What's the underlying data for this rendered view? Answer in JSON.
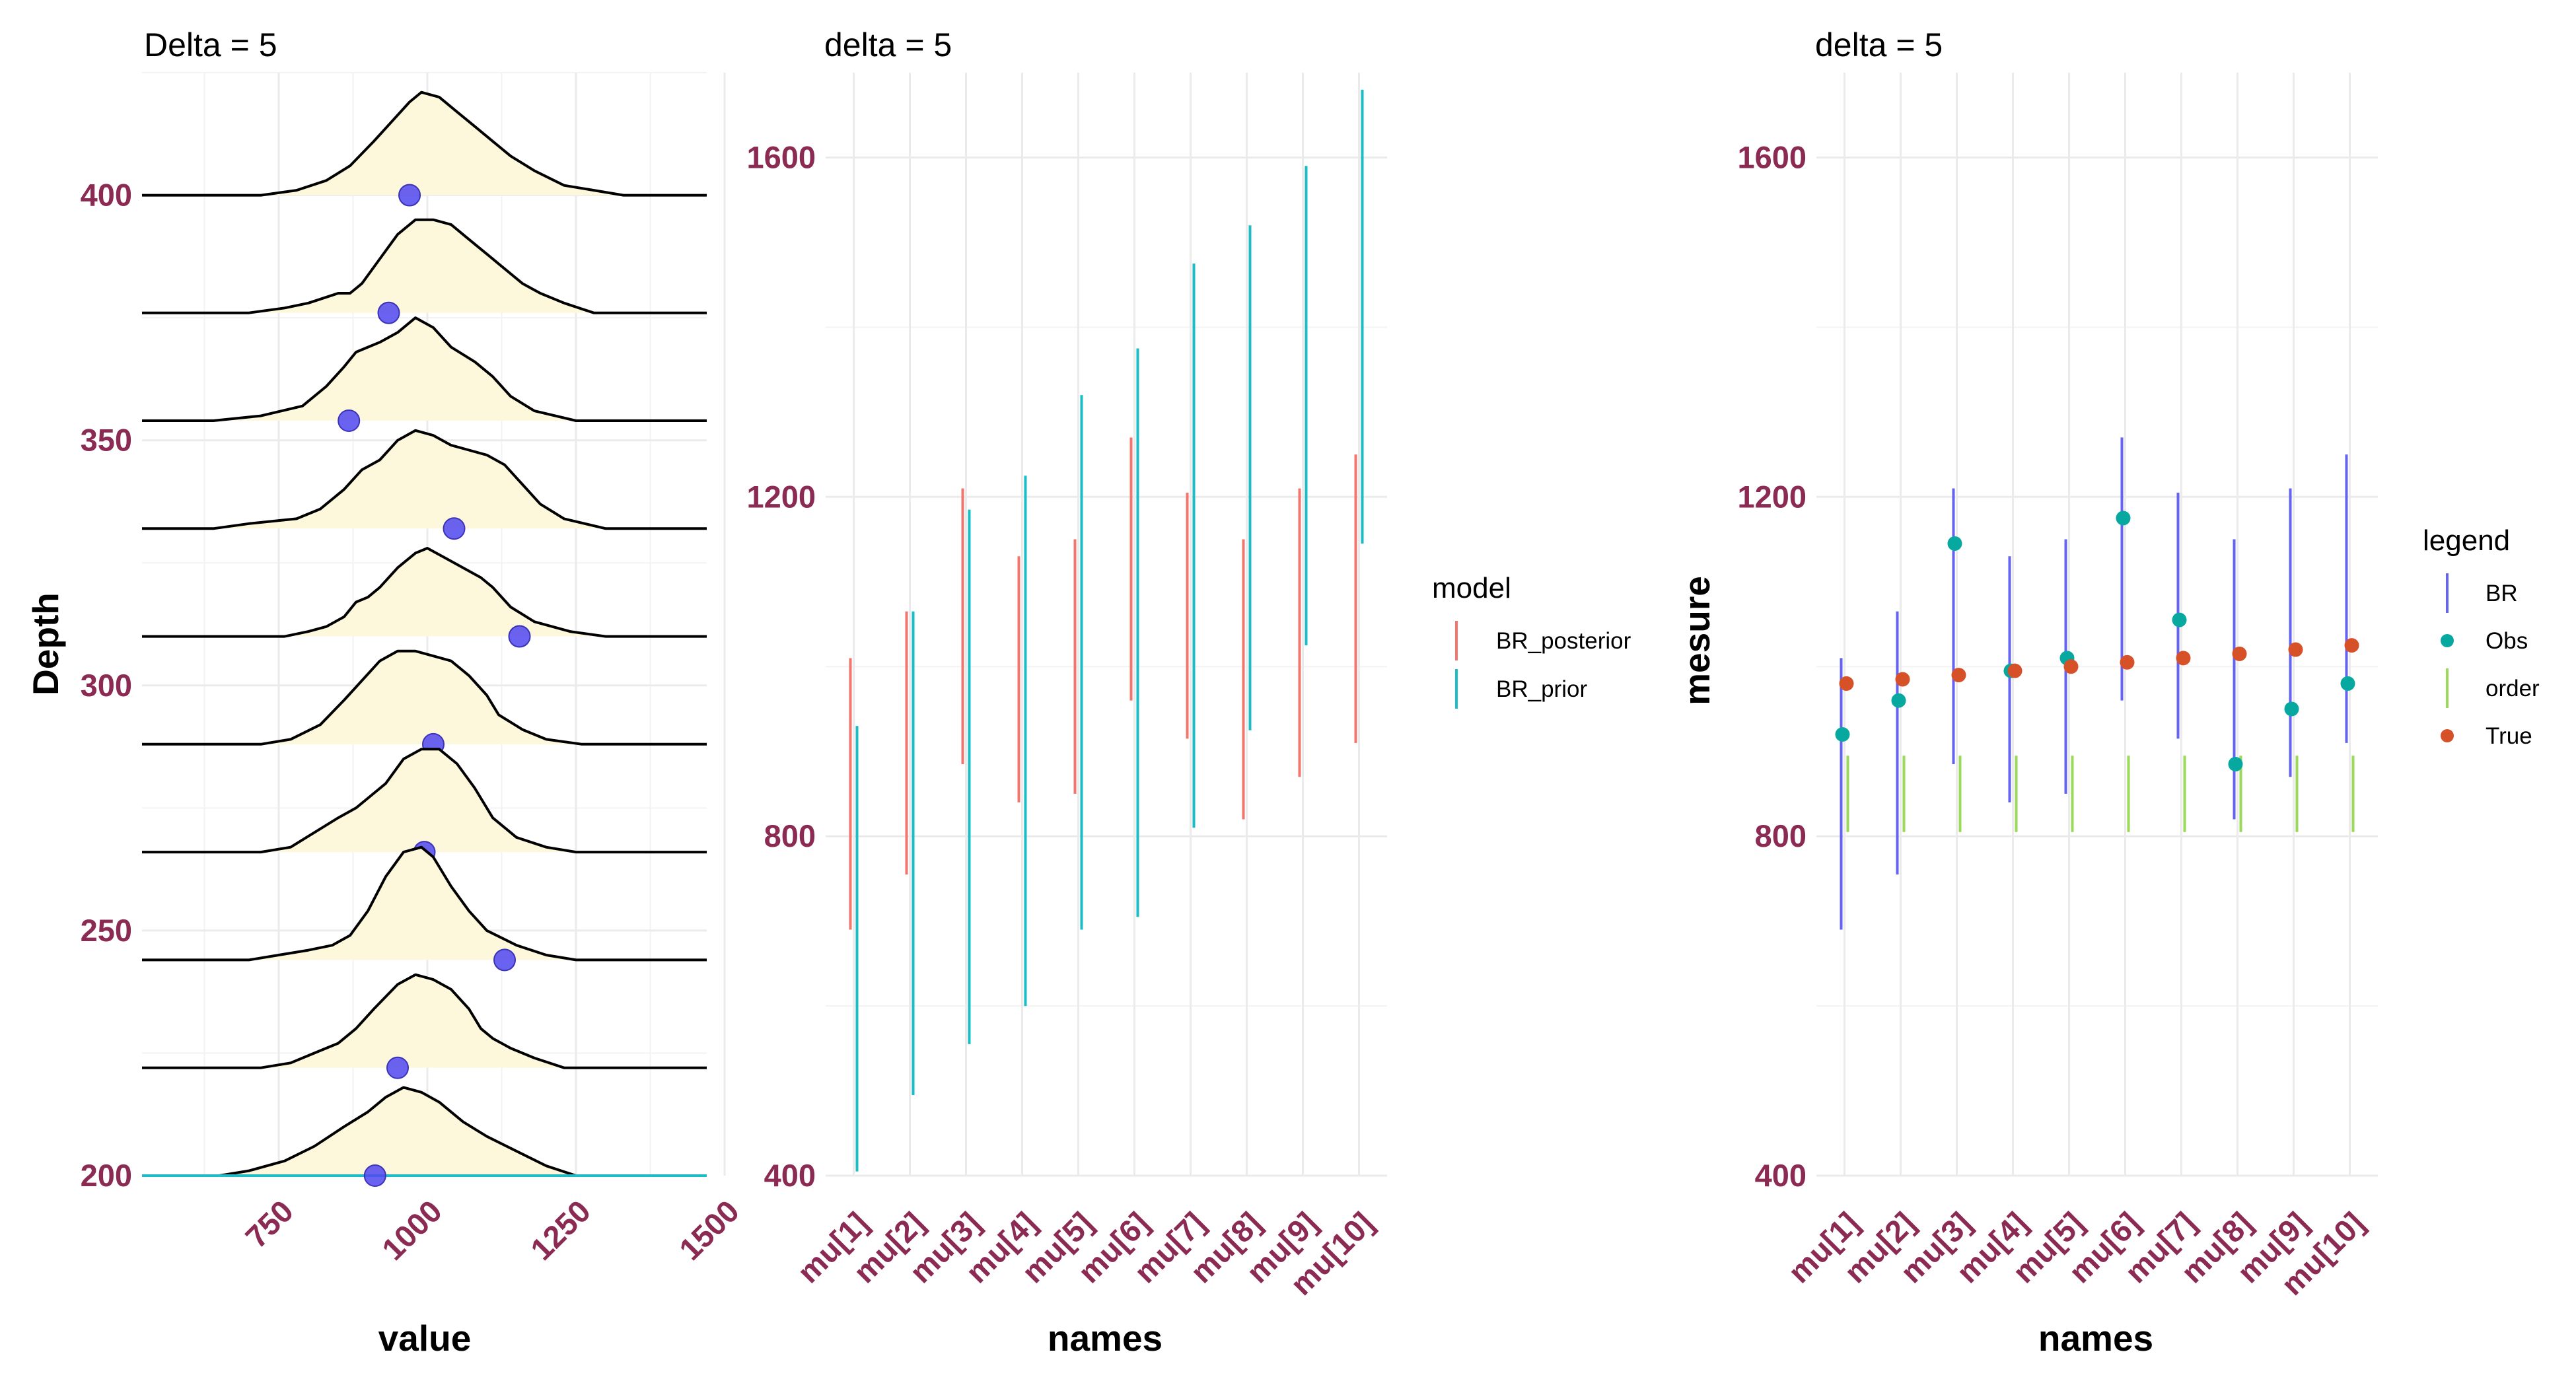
{
  "chart_data": [
    {
      "type": "ridgeline",
      "title": "Delta = 5",
      "xlabel": "value",
      "ylabel": "Depth",
      "xlim": [
        520,
        1470
      ],
      "ylim": [
        200,
        425
      ],
      "xticks": [
        "750",
        "1000",
        "1250",
        "1500"
      ],
      "yticks": [
        "200",
        "250",
        "300",
        "350",
        "400"
      ],
      "fill_color": "#fdf8dc",
      "point_color": "#5048f0",
      "ridges": [
        {
          "baseline": 200,
          "point": 912,
          "curve": [
            [
              520,
              0
            ],
            [
              650,
              0
            ],
            [
              700,
              1
            ],
            [
              760,
              3
            ],
            [
              810,
              6
            ],
            [
              860,
              10
            ],
            [
              900,
              13
            ],
            [
              930,
              16
            ],
            [
              960,
              18
            ],
            [
              990,
              17
            ],
            [
              1020,
              15
            ],
            [
              1060,
              11
            ],
            [
              1100,
              8
            ],
            [
              1150,
              5
            ],
            [
              1200,
              2
            ],
            [
              1250,
              0
            ],
            [
              1470,
              0
            ]
          ]
        },
        {
          "baseline": 222,
          "point": 950,
          "curve": [
            [
              520,
              0
            ],
            [
              720,
              0
            ],
            [
              770,
              1
            ],
            [
              810,
              3
            ],
            [
              850,
              5
            ],
            [
              880,
              8
            ],
            [
              910,
              12
            ],
            [
              950,
              17
            ],
            [
              980,
              19
            ],
            [
              1010,
              18
            ],
            [
              1040,
              16
            ],
            [
              1070,
              12
            ],
            [
              1090,
              8
            ],
            [
              1110,
              6
            ],
            [
              1140,
              4
            ],
            [
              1180,
              2
            ],
            [
              1230,
              0
            ],
            [
              1470,
              0
            ]
          ]
        },
        {
          "baseline": 244,
          "point": 1130,
          "curve": [
            [
              520,
              0
            ],
            [
              700,
              0
            ],
            [
              750,
              1
            ],
            [
              800,
              2
            ],
            [
              840,
              3
            ],
            [
              870,
              5
            ],
            [
              900,
              10
            ],
            [
              930,
              17
            ],
            [
              960,
              22
            ],
            [
              990,
              23
            ],
            [
              1010,
              21
            ],
            [
              1040,
              15
            ],
            [
              1070,
              10
            ],
            [
              1100,
              6
            ],
            [
              1150,
              3
            ],
            [
              1200,
              1
            ],
            [
              1250,
              0
            ],
            [
              1470,
              0
            ]
          ]
        },
        {
          "baseline": 266,
          "point": 995,
          "curve": [
            [
              520,
              0
            ],
            [
              720,
              0
            ],
            [
              770,
              1
            ],
            [
              810,
              4
            ],
            [
              850,
              7
            ],
            [
              880,
              9
            ],
            [
              900,
              11
            ],
            [
              930,
              14
            ],
            [
              960,
              19
            ],
            [
              990,
              21
            ],
            [
              1020,
              21
            ],
            [
              1050,
              18
            ],
            [
              1080,
              13
            ],
            [
              1110,
              7
            ],
            [
              1150,
              3
            ],
            [
              1200,
              1
            ],
            [
              1250,
              0
            ],
            [
              1470,
              0
            ]
          ]
        },
        {
          "baseline": 288,
          "point": 1010,
          "curve": [
            [
              520,
              0
            ],
            [
              720,
              0
            ],
            [
              770,
              1
            ],
            [
              820,
              4
            ],
            [
              860,
              9
            ],
            [
              890,
              13
            ],
            [
              920,
              17
            ],
            [
              950,
              19
            ],
            [
              980,
              19
            ],
            [
              1010,
              18
            ],
            [
              1040,
              17
            ],
            [
              1070,
              14
            ],
            [
              1100,
              10
            ],
            [
              1120,
              6
            ],
            [
              1160,
              3
            ],
            [
              1200,
              1
            ],
            [
              1260,
              0
            ],
            [
              1470,
              0
            ]
          ]
        },
        {
          "baseline": 310,
          "point": 1155,
          "curve": [
            [
              520,
              0
            ],
            [
              760,
              0
            ],
            [
              800,
              1
            ],
            [
              830,
              2
            ],
            [
              860,
              4
            ],
            [
              880,
              7
            ],
            [
              900,
              8
            ],
            [
              920,
              10
            ],
            [
              950,
              14
            ],
            [
              980,
              17
            ],
            [
              1000,
              18
            ],
            [
              1030,
              16
            ],
            [
              1060,
              14
            ],
            [
              1090,
              12
            ],
            [
              1110,
              10
            ],
            [
              1140,
              6
            ],
            [
              1180,
              3
            ],
            [
              1240,
              1
            ],
            [
              1300,
              0
            ],
            [
              1470,
              0
            ]
          ]
        },
        {
          "baseline": 332,
          "point": 1045,
          "curve": [
            [
              520,
              0
            ],
            [
              640,
              0
            ],
            [
              700,
              1
            ],
            [
              780,
              2
            ],
            [
              820,
              4
            ],
            [
              860,
              8
            ],
            [
              890,
              12
            ],
            [
              920,
              14
            ],
            [
              950,
              18
            ],
            [
              980,
              20
            ],
            [
              1010,
              19
            ],
            [
              1040,
              17
            ],
            [
              1070,
              16
            ],
            [
              1100,
              15
            ],
            [
              1130,
              13
            ],
            [
              1160,
              9
            ],
            [
              1190,
              5
            ],
            [
              1230,
              2
            ],
            [
              1300,
              0
            ],
            [
              1470,
              0
            ]
          ]
        },
        {
          "baseline": 354,
          "point": 868,
          "curve": [
            [
              520,
              0
            ],
            [
              640,
              0
            ],
            [
              720,
              1
            ],
            [
              790,
              3
            ],
            [
              830,
              7
            ],
            [
              860,
              11
            ],
            [
              880,
              14
            ],
            [
              900,
              15
            ],
            [
              920,
              16
            ],
            [
              950,
              18
            ],
            [
              980,
              21
            ],
            [
              1010,
              19
            ],
            [
              1040,
              15
            ],
            [
              1080,
              12
            ],
            [
              1110,
              9
            ],
            [
              1140,
              5
            ],
            [
              1180,
              2
            ],
            [
              1250,
              0
            ],
            [
              1470,
              0
            ]
          ]
        },
        {
          "baseline": 376,
          "point": 935,
          "curve": [
            [
              520,
              0
            ],
            [
              700,
              0
            ],
            [
              760,
              1
            ],
            [
              800,
              2
            ],
            [
              850,
              4
            ],
            [
              870,
              4
            ],
            [
              890,
              6
            ],
            [
              920,
              11
            ],
            [
              950,
              16
            ],
            [
              980,
              19
            ],
            [
              1010,
              19
            ],
            [
              1040,
              18
            ],
            [
              1070,
              15
            ],
            [
              1100,
              12
            ],
            [
              1130,
              9
            ],
            [
              1160,
              6
            ],
            [
              1190,
              4
            ],
            [
              1230,
              2
            ],
            [
              1280,
              0
            ],
            [
              1470,
              0
            ]
          ]
        },
        {
          "baseline": 400,
          "point": 970,
          "curve": [
            [
              520,
              0
            ],
            [
              720,
              0
            ],
            [
              780,
              1
            ],
            [
              830,
              3
            ],
            [
              870,
              6
            ],
            [
              910,
              11
            ],
            [
              940,
              15
            ],
            [
              970,
              19
            ],
            [
              990,
              21
            ],
            [
              1020,
              20
            ],
            [
              1050,
              17
            ],
            [
              1080,
              14
            ],
            [
              1110,
              11
            ],
            [
              1140,
              8
            ],
            [
              1180,
              5
            ],
            [
              1230,
              2
            ],
            [
              1280,
              1
            ],
            [
              1330,
              0
            ],
            [
              1470,
              0
            ]
          ]
        }
      ]
    },
    {
      "type": "range",
      "title": "delta = 5",
      "xlabel": "names",
      "ylabel": "",
      "ylim": [
        400,
        1700
      ],
      "yticks": [
        400,
        800,
        1200,
        1600
      ],
      "categories": [
        "mu[1]",
        "mu[2]",
        "mu[3]",
        "mu[4]",
        "mu[5]",
        "mu[6]",
        "mu[7]",
        "mu[8]",
        "mu[9]",
        "mu[10]"
      ],
      "legend_title": "model",
      "legend_position": "right",
      "series": [
        {
          "name": "BR_posterior",
          "color": "#f2766d",
          "low": [
            690,
            755,
            885,
            840,
            850,
            960,
            915,
            820,
            870,
            910
          ],
          "high": [
            1010,
            1065,
            1210,
            1130,
            1150,
            1270,
            1205,
            1150,
            1210,
            1250
          ]
        },
        {
          "name": "BR_prior",
          "color": "#1bbec6",
          "low": [
            405,
            495,
            555,
            600,
            690,
            705,
            810,
            925,
            1025,
            1145
          ],
          "high": [
            930,
            1065,
            1185,
            1225,
            1320,
            1375,
            1475,
            1520,
            1590,
            1680
          ]
        }
      ]
    },
    {
      "type": "pointrange",
      "title": "delta = 5",
      "xlabel": "names",
      "ylabel": "mesure",
      "ylim": [
        400,
        1700
      ],
      "yticks": [
        400,
        800,
        1200,
        1600
      ],
      "categories": [
        "mu[1]",
        "mu[2]",
        "mu[3]",
        "mu[4]",
        "mu[5]",
        "mu[6]",
        "mu[7]",
        "mu[8]",
        "mu[9]",
        "mu[10]"
      ],
      "legend_title": "legend",
      "legend_position": "right",
      "legend": [
        {
          "name": "BR",
          "color": "#6563f2",
          "kind": "line"
        },
        {
          "name": "Obs",
          "color": "#06a8a0",
          "kind": "point"
        },
        {
          "name": "order",
          "color": "#9ad95a",
          "kind": "line"
        },
        {
          "name": "True",
          "color": "#d65028",
          "kind": "point"
        }
      ],
      "BR": {
        "low": [
          690,
          755,
          885,
          840,
          850,
          960,
          915,
          820,
          870,
          910
        ],
        "high": [
          1010,
          1065,
          1210,
          1130,
          1150,
          1270,
          1205,
          1150,
          1210,
          1250
        ]
      },
      "order": {
        "low": [
          805,
          805,
          805,
          805,
          805,
          805,
          805,
          805,
          805,
          805
        ],
        "high": [
          895,
          895,
          895,
          895,
          895,
          895,
          895,
          895,
          895,
          895
        ]
      },
      "Obs": [
        920,
        960,
        1145,
        995,
        1010,
        1175,
        1055,
        885,
        950,
        980
      ],
      "True": [
        980,
        985,
        990,
        995,
        1000,
        1005,
        1010,
        1015,
        1020,
        1025
      ]
    }
  ]
}
